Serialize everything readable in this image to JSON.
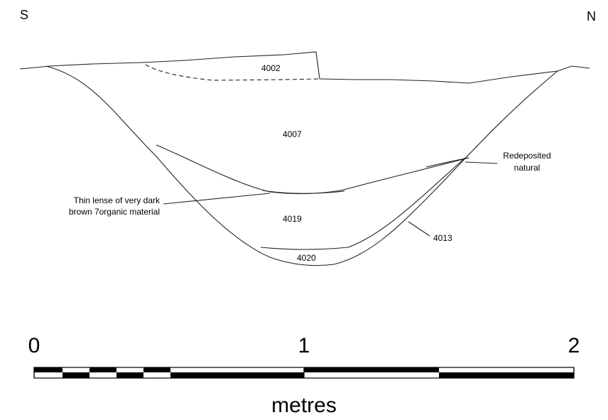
{
  "orientation": {
    "left": "S",
    "right": "N"
  },
  "layers": [
    "4002",
    "4007",
    "4019",
    "4020",
    "4013"
  ],
  "annotations": [
    {
      "lines": [
        "Thin lense of very dark",
        "brown 7organic material"
      ]
    },
    {
      "lines": [
        "Redeposited",
        "natural"
      ]
    }
  ],
  "scale": {
    "ticks": [
      0,
      1,
      2
    ],
    "unit": "metres"
  }
}
